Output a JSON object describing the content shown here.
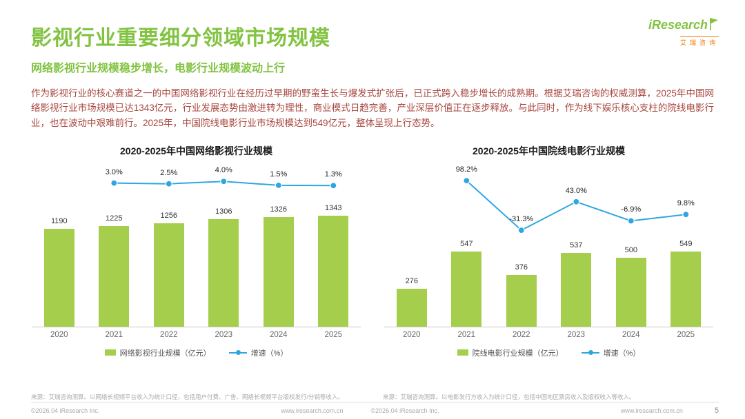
{
  "colors": {
    "green": "#82C341",
    "bar": "#A5CE4C",
    "blue": "#2EA7E0",
    "red": "#A8463E"
  },
  "header": {
    "title": "影视行业重要细分领域市场规模",
    "subtitle": "网络影视行业规模稳步增长，电影行业规模波动上行",
    "logo": {
      "name": "iResearch",
      "cn": "艾瑞咨询"
    }
  },
  "intro": "作为影视行业的核心赛道之一的中国网络影视行业在经历过早期的野蛮生长与爆发式扩张后，已正式跨入稳步增长的成熟期。根据艾瑞咨询的权威测算，2025年中国网络影视行业市场规模已达1343亿元，行业发展态势由激进转为理性，商业模式日趋完善，产业深层价值正在逐步释放。与此同时，作为线下娱乐核心支柱的院线电影行业，也在波动中艰难前行。2025年，中国院线电影行业市场规模达到549亿元，整体呈现上行态势。",
  "chart_data": [
    {
      "type": "bar",
      "title": "2020-2025年中国网络影视行业规模",
      "categories": [
        "2020",
        "2021",
        "2022",
        "2023",
        "2024",
        "2025"
      ],
      "series": [
        {
          "name": "网络影视行业规模（亿元）",
          "type": "bar",
          "values": [
            1190,
            1225,
            1256,
            1306,
            1326,
            1343
          ]
        },
        {
          "name": "增速（%）",
          "type": "line",
          "values": [
            null,
            3.0,
            2.5,
            4.0,
            1.5,
            1.3
          ],
          "labels": [
            null,
            "3.0%",
            "2.5%",
            "4.0%",
            "1.5%",
            "1.3%"
          ]
        }
      ],
      "bar_ylim": [
        0,
        2000
      ],
      "line_range": [
        -35,
        10
      ],
      "grid": false,
      "legend_position": "bottom"
    },
    {
      "type": "bar",
      "title": "2020-2025年中国院线电影行业规模",
      "categories": [
        "2020",
        "2021",
        "2022",
        "2023",
        "2024",
        "2025"
      ],
      "series": [
        {
          "name": "院线电影行业规模（亿元）",
          "type": "bar",
          "values": [
            276,
            547,
            376,
            537,
            500,
            549
          ]
        },
        {
          "name": "增速（%）",
          "type": "line",
          "values": [
            null,
            98.2,
            -31.3,
            43.0,
            -6.9,
            9.8
          ],
          "labels": [
            null,
            "98.2%",
            "-31.3%",
            "43.0%",
            "-6.9%",
            "9.8%"
          ]
        }
      ],
      "bar_ylim": [
        0,
        1200
      ],
      "line_range": [
        -60,
        120
      ],
      "grid": false,
      "legend_position": "bottom"
    }
  ],
  "sources": {
    "left": "来源：艾瑞咨询测算。以网络长视频平台收入为统计口径，包括用户付费、广告、网络长视频平台版权发行/分销等收入。",
    "right": "来源：艾瑞咨询测算。以电影发行方收入为统计口径，包括中国地区票房收入及版权收入等收入。"
  },
  "footer": {
    "items": [
      "©2026.04 iResearch Inc.",
      "www.iresearch.com.cn",
      "©2026.04 iResearch Inc.",
      "www.iresearch.com.cn"
    ],
    "page": "5"
  }
}
